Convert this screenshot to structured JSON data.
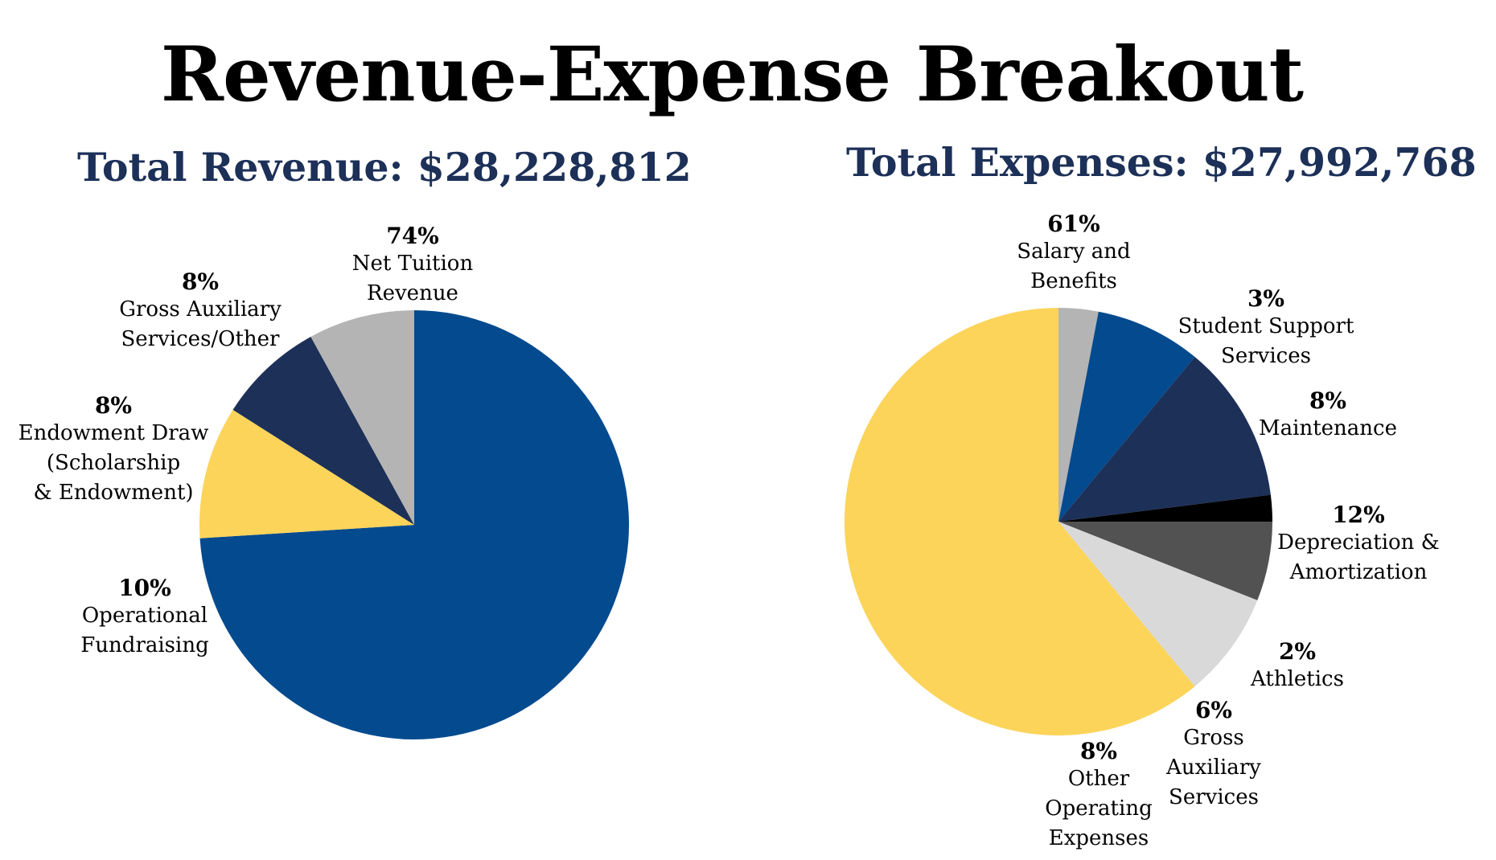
{
  "title": "Revenue-Expense Breakout",
  "revenue": {
    "subtitle": "Total Revenue: $28,228,812"
  },
  "expenses": {
    "subtitle": "Total Expenses: $27,992,768"
  },
  "chart_data": [
    {
      "type": "pie",
      "title": "Total Revenue: $28,228,812",
      "start": "top, clockwise",
      "slices": [
        {
          "label": "Net Tuition Revenue",
          "label_lines": [
            "Net Tuition",
            "Revenue"
          ],
          "percent_label": "74%",
          "value": 74,
          "color": "#034a8e"
        },
        {
          "label": "Operational Fundraising",
          "label_lines": [
            "Operational",
            "Fundraising"
          ],
          "percent_label": "10%",
          "value": 10,
          "color": "#fcd45a"
        },
        {
          "label": "Endowment Draw (Scholarship & Endowment)",
          "label_lines": [
            "Endowment Draw",
            "(Scholarship",
            "& Endowment)"
          ],
          "percent_label": "8%",
          "value": 8,
          "color": "#1c3058"
        },
        {
          "label": "Gross Auxiliary Services/Other",
          "label_lines": [
            "Gross Auxiliary",
            "Services/Other"
          ],
          "percent_label": "8%",
          "value": 8,
          "color": "#b4b4b4"
        }
      ]
    },
    {
      "type": "pie",
      "title": "Total Expenses: $27,992,768",
      "start": "top, clockwise",
      "slices": [
        {
          "label": "Student Support Services",
          "label_lines": [
            "Student Support",
            "Services"
          ],
          "percent_label": "3%",
          "value": 3,
          "color": "#b4b4b4"
        },
        {
          "label": "Maintenance",
          "label_lines": [
            "Maintenance"
          ],
          "percent_label": "8%",
          "value": 8,
          "color": "#034a8e"
        },
        {
          "label": "Depreciation & Amortization",
          "label_lines": [
            "Depreciation &",
            "Amortization"
          ],
          "percent_label": "12%",
          "value": 12,
          "color": "#1c3058"
        },
        {
          "label": "Athletics",
          "label_lines": [
            "Athletics"
          ],
          "percent_label": "2%",
          "value": 2,
          "color": "#000000"
        },
        {
          "label": "Gross Auxiliary Services",
          "label_lines": [
            "Gross",
            "Auxiliary",
            "Services"
          ],
          "percent_label": "6%",
          "value": 6,
          "color": "#525252"
        },
        {
          "label": "Other Operating Expenses",
          "label_lines": [
            "Other",
            "Operating",
            "Expenses"
          ],
          "percent_label": "8%",
          "value": 8,
          "color": "#d9d9d9"
        },
        {
          "label": "Salary and Benefits",
          "label_lines": [
            "Salary and",
            "Benefits"
          ],
          "percent_label": "61%",
          "value": 61,
          "color": "#fcd45a"
        }
      ]
    }
  ]
}
